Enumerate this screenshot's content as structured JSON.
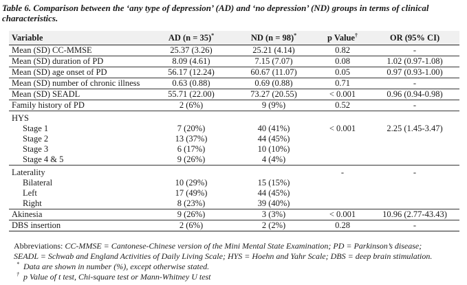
{
  "caption": "Table 6. Comparison between the ‘any type of depression’ (AD) and ‘no depression’ (ND) groups in terms of clinical characteristics.",
  "header": {
    "variable": "Variable",
    "ad": "AD (n = 35)",
    "ad_mark": "*",
    "nd": "ND (n = 98)",
    "nd_mark": "*",
    "p": "p Value",
    "p_mark": "†",
    "or": "OR (95% CI)"
  },
  "rows": [
    {
      "label": "Mean (SD) CC-MMSE",
      "ad": "25.37 (3.26)",
      "nd": "25.21 (4.14)",
      "p": "0.82",
      "or": "-"
    },
    {
      "label": "Mean (SD) duration of PD",
      "ad": "8.09 (4.61)",
      "nd": "7.15 (7.07)",
      "p": "0.08",
      "or": "1.02 (0.97-1.08)"
    },
    {
      "label": "Mean (SD) age onset of PD",
      "ad": "56.17 (12.24)",
      "nd": "60.67 (11.07)",
      "p": "0.05",
      "or": "0.97 (0.93-1.00)"
    },
    {
      "label": "Mean (SD) number of chronic illness",
      "ad": "0.63 (0.88)",
      "nd": "0.69 (0.88)",
      "p": "0.71",
      "or": "-"
    },
    {
      "label": "Mean (SD) SEADL",
      "ad": "55.71 (22.00)",
      "nd": "73.27 (20.55)",
      "p": "< 0.001",
      "or": "0.96 (0.94-0.98)"
    },
    {
      "label": "Family history of PD",
      "ad": "2 (6%)",
      "nd": "9 (9%)",
      "p": "0.52",
      "or": "-"
    }
  ],
  "hys": {
    "label": "HYS",
    "p": "< 0.001",
    "or": "2.25 (1.45-3.47)",
    "stages": [
      {
        "label": "Stage 1",
        "ad": "7 (20%)",
        "nd": "40 (41%)"
      },
      {
        "label": "Stage 2",
        "ad": "13 (37%)",
        "nd": "44 (45%)"
      },
      {
        "label": "Stage 3",
        "ad": "6 (17%)",
        "nd": "10 (10%)"
      },
      {
        "label": "Stage 4 & 5",
        "ad": "9 (26%)",
        "nd": "4 (4%)"
      }
    ]
  },
  "laterality": {
    "label": "Laterality",
    "p": "-",
    "or": "-",
    "items": [
      {
        "label": "Bilateral",
        "ad": "10 (29%)",
        "nd": "15 (15%)"
      },
      {
        "label": "Left",
        "ad": "17 (49%)",
        "nd": "44 (45%)"
      },
      {
        "label": "Right",
        "ad": "8 (23%)",
        "nd": "39 (40%)"
      }
    ]
  },
  "akinesia": {
    "label": "Akinesia",
    "ad": "9 (26%)",
    "nd": "3 (3%)",
    "p": "< 0.001",
    "or": "10.96 (2.77-43.43)"
  },
  "dbs": {
    "label": "DBS insertion",
    "ad": "2 (6%)",
    "nd": "2 (2%)",
    "p": "0.28",
    "or": "-"
  },
  "notes": {
    "abbrev_lead": "Abbreviations: ",
    "abbrev_line1": "CC-MMSE = Cantonese-Chinese version of the Mini Mental State Examination; PD = Parkinson’s disease;",
    "abbrev_line2": "SEADL = Schwab and England Activities of Daily Living Scale; HYS = Hoehn and Yahr Scale; DBS = deep brain stimulation.",
    "note1_mark": "*",
    "note1": "Data are shown in number (%), except otherwise stated.",
    "note2_mark": "†",
    "note2": "p Value of t test, Chi-square test or Mann-Whitney U test"
  }
}
